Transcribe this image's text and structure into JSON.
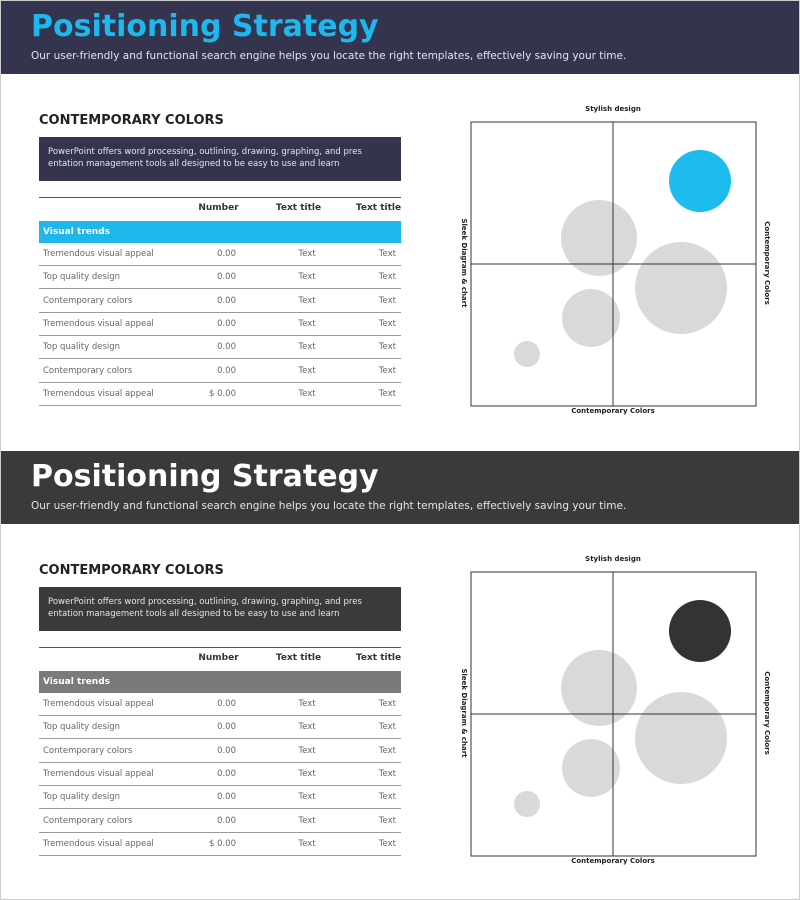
{
  "slides": [
    {
      "theme": {
        "header": "#34344e",
        "title": "#1cb8ee",
        "box": "#34344e",
        "group": "#1fb6ea",
        "highlight": "#1cbcee"
      },
      "header": {
        "title": "Positioning Strategy",
        "subtitle": "Our user-friendly and functional search engine helps you locate the right templates, effectively saving your time."
      },
      "section": {
        "heading": "CONTEMPORARY COLORS",
        "description": [
          "PowerPoint offers word processing, outlining, drawing, graphing, and pres",
          "entation management tools all designed to be easy to use and learn"
        ]
      },
      "table": {
        "columns": [
          "Number",
          "Text title",
          "Text title"
        ],
        "group": "Visual trends",
        "rows": [
          [
            "Tremendous visual appeal",
            "0.00",
            "Text",
            "Text"
          ],
          [
            "Top quality design",
            "0.00",
            "Text",
            "Text"
          ],
          [
            "Contemporary colors",
            "0.00",
            "Text",
            "Text"
          ],
          [
            "Tremendous visual appeal",
            "0.00",
            "Text",
            "Text"
          ],
          [
            "Top quality design",
            "0.00",
            "Text",
            "Text"
          ],
          [
            "Contemporary colors",
            "0.00",
            "Text",
            "Text"
          ],
          [
            "Tremendous visual appeal",
            "$ 0.00",
            "Text",
            "Text"
          ]
        ]
      },
      "map": {
        "top": "Stylish design",
        "bottom": "Contemporary Colors",
        "left": "Sleek Diagram & chart",
        "right": "Contemporary Colors"
      }
    },
    {
      "theme": {
        "header": "#3a3a3a",
        "title": "#ffffff",
        "box": "#3a3a3a",
        "group": "#7a7a7a",
        "highlight": "#333333"
      },
      "header": {
        "title": "Positioning Strategy",
        "subtitle": "Our user-friendly and functional search engine helps you locate the right templates, effectively saving your time."
      },
      "section": {
        "heading": "CONTEMPORARY COLORS",
        "description": [
          "PowerPoint offers word processing, outlining, drawing, graphing, and pres",
          "entation management tools all designed to be easy to use and learn"
        ]
      },
      "table": {
        "columns": [
          "Number",
          "Text title",
          "Text title"
        ],
        "group": "Visual trends",
        "rows": [
          [
            "Tremendous visual appeal",
            "0.00",
            "Text",
            "Text"
          ],
          [
            "Top quality design",
            "0.00",
            "Text",
            "Text"
          ],
          [
            "Contemporary colors",
            "0.00",
            "Text",
            "Text"
          ],
          [
            "Tremendous visual appeal",
            "0.00",
            "Text",
            "Text"
          ],
          [
            "Top quality design",
            "0.00",
            "Text",
            "Text"
          ],
          [
            "Contemporary colors",
            "0.00",
            "Text",
            "Text"
          ],
          [
            "Tremendous visual appeal",
            "$ 0.00",
            "Text",
            "Text"
          ]
        ]
      },
      "map": {
        "top": "Stylish design",
        "bottom": "Contemporary Colors",
        "left": "Sleek Diagram & chart",
        "right": "Contemporary Colors"
      }
    }
  ]
}
